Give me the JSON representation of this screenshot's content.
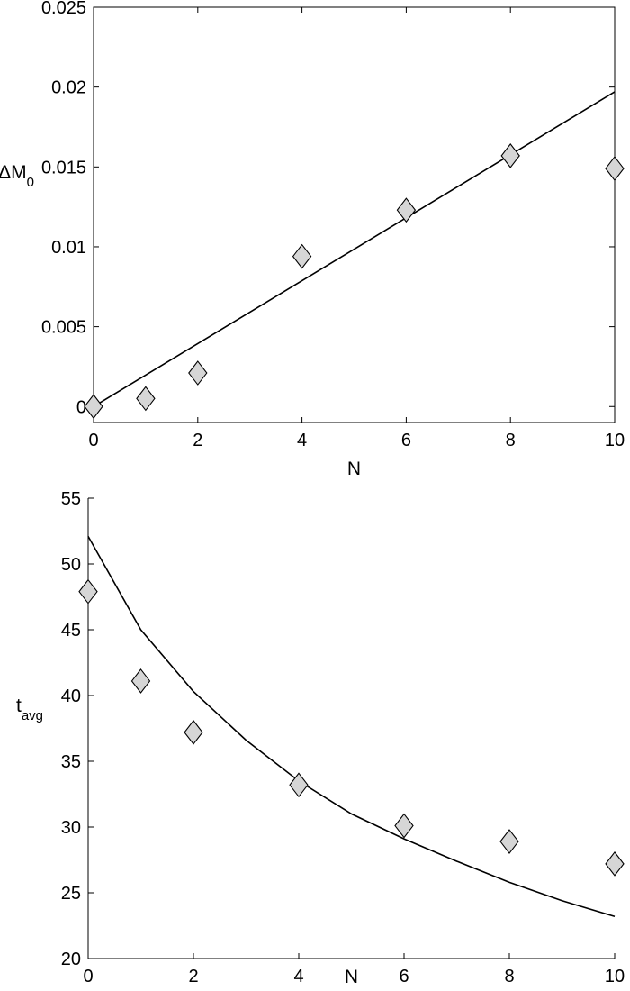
{
  "chart_data": [
    {
      "type": "scatter",
      "xlabel": "N",
      "ylabel": {
        "main": "ΔM",
        "sub": "0"
      },
      "xlim": [
        0,
        10
      ],
      "ylim": [
        -0.001,
        0.025
      ],
      "x_ticks": [
        "0",
        "2",
        "4",
        "6",
        "8",
        "10"
      ],
      "y_ticks": [
        "0",
        "0.005",
        "0.01",
        "0.015",
        "0.02",
        "0.025"
      ],
      "x_tick_values": [
        0,
        2,
        4,
        6,
        8,
        10
      ],
      "y_tick_values": [
        0,
        0.005,
        0.01,
        0.015,
        0.02,
        0.025
      ],
      "grid": false,
      "box": "full",
      "series": [
        {
          "kind": "markers",
          "marker": "diamond",
          "x": [
            0,
            1,
            2,
            4,
            6,
            8,
            10
          ],
          "y": [
            0.0,
            0.0005,
            0.0021,
            0.0094,
            0.0123,
            0.0157,
            0.0149
          ]
        },
        {
          "kind": "line",
          "x": [
            0,
            10
          ],
          "y": [
            0.0,
            0.0197
          ]
        }
      ]
    },
    {
      "type": "scatter",
      "xlabel": "N",
      "ylabel": {
        "main": "t",
        "sub": "avg"
      },
      "xlim": [
        0,
        10
      ],
      "ylim": [
        20,
        55
      ],
      "x_ticks": [
        "0",
        "2",
        "4",
        "6",
        "8",
        "10"
      ],
      "y_ticks": [
        "20",
        "25",
        "30",
        "35",
        "40",
        "45",
        "50",
        "55"
      ],
      "x_tick_values": [
        0,
        2,
        4,
        6,
        8,
        10
      ],
      "y_tick_values": [
        20,
        25,
        30,
        35,
        40,
        45,
        50,
        55
      ],
      "grid": false,
      "box": "left-bottom",
      "series": [
        {
          "kind": "markers",
          "marker": "diamond",
          "x": [
            0,
            1,
            2,
            4,
            6,
            8,
            10
          ],
          "y": [
            47.9,
            41.1,
            37.2,
            33.2,
            30.1,
            28.9,
            27.2
          ]
        },
        {
          "kind": "line",
          "x": [
            0,
            1,
            2,
            3,
            4,
            5,
            6,
            7,
            8,
            9,
            10
          ],
          "y": [
            52.1,
            45.0,
            40.3,
            36.6,
            33.5,
            31.0,
            29.1,
            27.4,
            25.8,
            24.4,
            23.2
          ]
        }
      ]
    }
  ]
}
